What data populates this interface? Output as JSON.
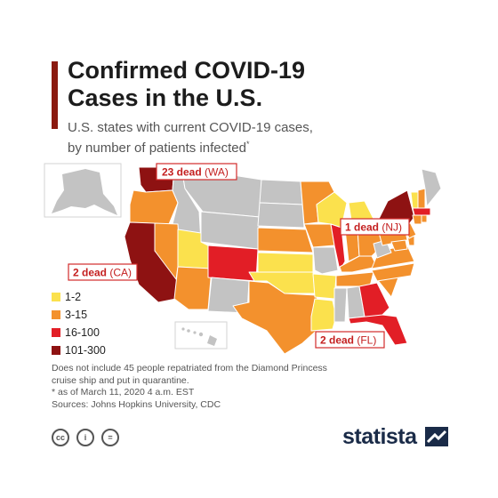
{
  "title_line1": "Confirmed COVID-19",
  "title_line2": "Cases in the U.S.",
  "subtitle_line1": "U.S. states with current COVID-19 cases,",
  "subtitle_line2": "by number of patients infected",
  "subtitle_mark": "*",
  "colors": {
    "accent": "#8b1a10",
    "no_cases": "#c3c3c3",
    "bin_1_2": "#fbe14d",
    "bin_3_15": "#f3912d",
    "bin_16_100": "#e21e26",
    "bin_101_300": "#8e1212",
    "callout_border": "#d32b2b",
    "callout_text": "#c41f1f",
    "brand": "#1a2b48"
  },
  "legend": [
    {
      "label": "1-2",
      "color": "#fbe14d"
    },
    {
      "label": "3-15",
      "color": "#f3912d"
    },
    {
      "label": "16-100",
      "color": "#e21e26"
    },
    {
      "label": "101-300",
      "color": "#8e1212"
    }
  ],
  "callouts": [
    {
      "bold": "23 dead",
      "rest": " (WA)"
    },
    {
      "bold": "1 dead",
      "rest": " (NJ)"
    },
    {
      "bold": "2 dead",
      "rest": " (CA)"
    },
    {
      "bold": "2 dead",
      "rest": " (FL)"
    }
  ],
  "notes": [
    "Does not include 45 people repatriated from the Diamond Princess",
    "cruise ship and put in quarantine.",
    "* as of March 11, 2020 4 a.m. EST",
    "Sources: Johns Hopkins University, CDC"
  ],
  "license_icons": [
    "cc-icon",
    "person-icon",
    "equals-icon"
  ],
  "license_glyphs": [
    "cc",
    "i",
    "="
  ],
  "brand": "statista",
  "brand_icon": "statista-logo-icon"
}
